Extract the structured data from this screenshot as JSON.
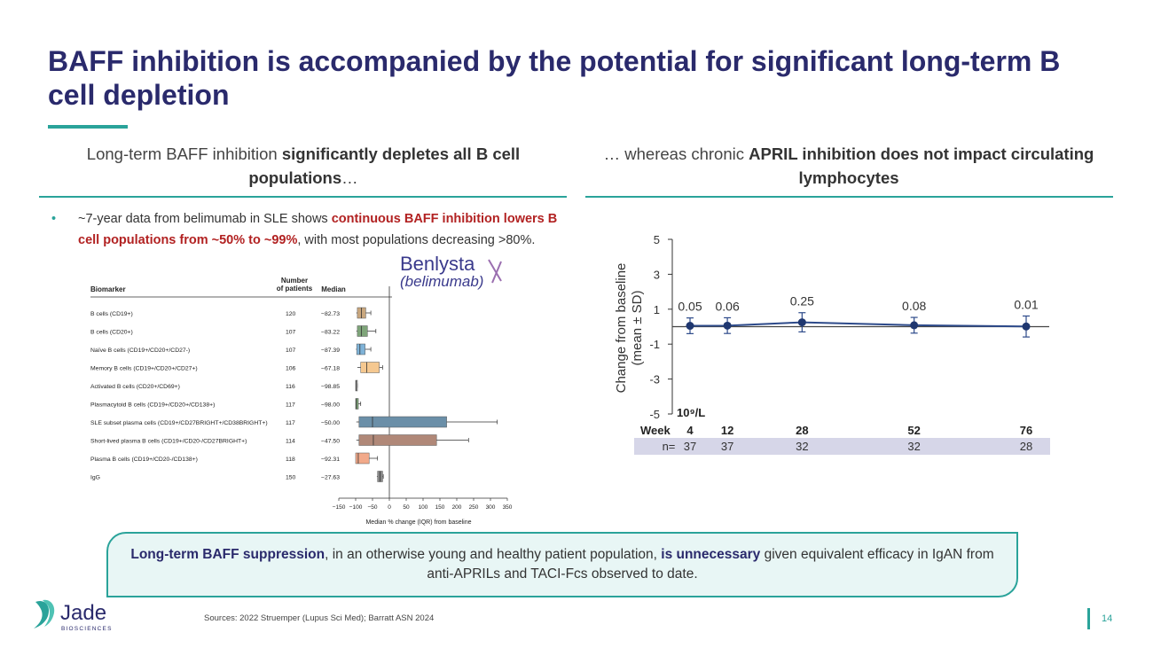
{
  "slide": {
    "title": "BAFF inhibition is accompanied by the potential for significant long-term B cell depletion",
    "left_header": {
      "pre": "Long-term BAFF inhibition ",
      "bold": "significantly depletes all B cell populations",
      "post": "…"
    },
    "right_header": {
      "pre": "… whereas chronic ",
      "bold": "APRIL inhibition does not impact circulating lymphocytes"
    },
    "bullet": {
      "pre": "~7-year data from belimumab in SLE shows ",
      "red": "continuous BAFF inhibition lowers B cell populations from ~50% to ~99%",
      "post": ", with most populations decreasing >80%."
    },
    "benlysta_logo": {
      "name": "Benlysta",
      "sub": "(belimumab)"
    },
    "callout": {
      "bold1": "Long-term BAFF suppression",
      "mid": ", in an otherwise young and healthy patient population, ",
      "bold2": "is unnecessary",
      "end": " given equivalent efficacy in IgAN from anti-APRILs and TACI-Fcs observed to date."
    },
    "sources": "Sources: 2022 Struemper (Lupus Sci Med); Barratt ASN 2024",
    "page_number": "14",
    "company_logo": {
      "name": "Jade",
      "sub": "BIOSCIENCES"
    }
  },
  "colors": {
    "navy": "#2a2a6c",
    "teal": "#2aa39a",
    "red": "#b22222"
  },
  "chart_data": [
    {
      "type": "box",
      "title": "",
      "headers": {
        "biomarker": "Biomarker",
        "n": "Number of patients",
        "median": "Median"
      },
      "xlabel": "Median % change (IQR) from baseline",
      "xlim": [
        -150,
        350
      ],
      "xticks": [
        -150,
        -100,
        -50,
        0,
        50,
        100,
        150,
        200,
        250,
        300,
        350
      ],
      "rows": [
        {
          "label": "B cells (CD19+)",
          "n": "120",
          "median": "−82.73",
          "med": -82.73,
          "q1": -95,
          "q3": -70,
          "wlo": -98,
          "whi": -55,
          "color": "#c9a77e"
        },
        {
          "label": "B cells (CD20+)",
          "n": "107",
          "median": "−83.22",
          "med": -83.22,
          "q1": -95,
          "q3": -65,
          "wlo": -98,
          "whi": -40,
          "color": "#7fa57a"
        },
        {
          "label": "Naïve B cells (CD19+/CD20+/CD27-)",
          "n": "107",
          "median": "−87.39",
          "med": -87.39,
          "q1": -97,
          "q3": -72,
          "wlo": -99,
          "whi": -55,
          "color": "#7fb3d8"
        },
        {
          "label": "Memory B cells (CD19+/CD20+/CD27+)",
          "n": "106",
          "median": "−67.18",
          "med": -67.18,
          "q1": -85,
          "q3": -30,
          "wlo": -95,
          "whi": -20,
          "color": "#f5c890"
        },
        {
          "label": "Activated B cells (CD20+/CD69+)",
          "n": "116",
          "median": "−98.85",
          "med": -98.85,
          "q1": -100,
          "q3": -97,
          "wlo": -100,
          "whi": -95,
          "color": "#aaaaaa"
        },
        {
          "label": "Plasmacytoid B cells (CD19+/CD20+/CD138+)",
          "n": "117",
          "median": "−98.00",
          "med": -98.0,
          "q1": -100,
          "q3": -92,
          "wlo": -100,
          "whi": -85,
          "color": "#7fa57a"
        },
        {
          "label": "SLE subset plasma cells (CD19+/CD27BRIGHT+/CD38BRIGHT+)",
          "n": "117",
          "median": "−50.00",
          "med": -50.0,
          "q1": -90,
          "q3": 170,
          "wlo": -98,
          "whi": 320,
          "color": "#6b8fa8"
        },
        {
          "label": "Short-lived plasma B cells (CD19+/CD20-/CD27BRIGHT+)",
          "n": "114",
          "median": "−47.50",
          "med": -47.5,
          "q1": -90,
          "q3": 140,
          "wlo": -98,
          "whi": 235,
          "color": "#b08878"
        },
        {
          "label": "Plasma B cells (CD19+/CD20-/CD138+)",
          "n": "118",
          "median": "−92.31",
          "med": -92.31,
          "q1": -100,
          "q3": -60,
          "wlo": -100,
          "whi": -35,
          "color": "#f2a98a"
        },
        {
          "label": "IgG",
          "n": "150",
          "median": "−27.63",
          "med": -27.63,
          "q1": -35,
          "q3": -20,
          "wlo": -37,
          "whi": -18,
          "color": "#888888"
        }
      ]
    },
    {
      "type": "line",
      "title": "",
      "ylabel_line1": "Change from baseline",
      "ylabel_line2": "(mean ± SD)",
      "unit_label": "10⁹/L",
      "ylim": [
        -5,
        5
      ],
      "yticks": [
        5,
        3,
        1,
        -1,
        -3,
        -5
      ],
      "x_label": "Week",
      "n_label": "n=",
      "x": [
        4,
        12,
        28,
        52,
        76
      ],
      "x_labels": [
        "4",
        "12",
        "28",
        "52",
        "76"
      ],
      "y": [
        0.05,
        0.06,
        0.25,
        0.08,
        0.01
      ],
      "y_labels": [
        "0.05",
        "0.06",
        "0.25",
        "0.08",
        "0.01"
      ],
      "sd": [
        0.45,
        0.45,
        0.55,
        0.45,
        0.6
      ],
      "n": [
        "37",
        "37",
        "32",
        "32",
        "28"
      ]
    }
  ]
}
